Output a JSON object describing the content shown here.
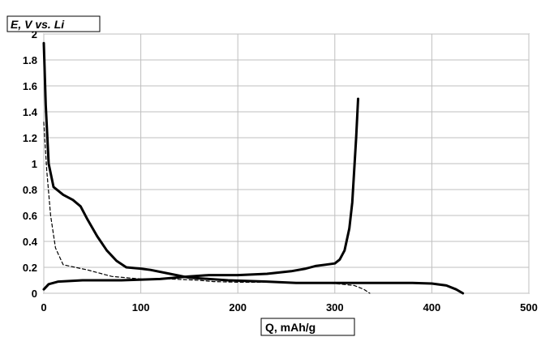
{
  "chart_data": {
    "type": "line",
    "title": "",
    "ylabel": "E, V vs. Li",
    "xlabel": "Q, mAh/g",
    "xlim": [
      0,
      500
    ],
    "ylim": [
      0,
      2
    ],
    "x_ticks": [
      "0",
      "100",
      "200",
      "300",
      "400",
      "500"
    ],
    "y_ticks": [
      "0",
      "0.2",
      "0.4",
      "0.6",
      "0.8",
      "1",
      "1.2",
      "1.4",
      "1.6",
      "1.8",
      "2"
    ],
    "grid": true,
    "series": [
      {
        "style": "solid",
        "points": [
          [
            0,
            1.93
          ],
          [
            2,
            1.45
          ],
          [
            5,
            1.0
          ],
          [
            10,
            0.82
          ],
          [
            20,
            0.76
          ],
          [
            30,
            0.72
          ],
          [
            38,
            0.67
          ],
          [
            45,
            0.57
          ],
          [
            55,
            0.44
          ],
          [
            65,
            0.33
          ],
          [
            75,
            0.25
          ],
          [
            85,
            0.2
          ],
          [
            100,
            0.19
          ],
          [
            110,
            0.18
          ],
          [
            130,
            0.15
          ],
          [
            150,
            0.12
          ],
          [
            170,
            0.11
          ],
          [
            190,
            0.1
          ],
          [
            230,
            0.09
          ],
          [
            260,
            0.08
          ],
          [
            300,
            0.08
          ],
          [
            340,
            0.08
          ],
          [
            380,
            0.08
          ],
          [
            400,
            0.075
          ],
          [
            415,
            0.06
          ],
          [
            425,
            0.03
          ],
          [
            432,
            0.0
          ]
        ]
      },
      {
        "style": "solid",
        "points": [
          [
            0,
            0.03
          ],
          [
            5,
            0.07
          ],
          [
            15,
            0.09
          ],
          [
            40,
            0.1
          ],
          [
            80,
            0.1
          ],
          [
            120,
            0.11
          ],
          [
            150,
            0.13
          ],
          [
            170,
            0.14
          ],
          [
            200,
            0.14
          ],
          [
            230,
            0.15
          ],
          [
            255,
            0.17
          ],
          [
            270,
            0.19
          ],
          [
            280,
            0.21
          ],
          [
            290,
            0.22
          ],
          [
            300,
            0.23
          ],
          [
            305,
            0.26
          ],
          [
            310,
            0.33
          ],
          [
            315,
            0.5
          ],
          [
            318,
            0.7
          ],
          [
            320,
            0.95
          ],
          [
            322,
            1.2
          ],
          [
            324,
            1.5
          ]
        ]
      },
      {
        "style": "dashed",
        "points": [
          [
            0,
            1.32
          ],
          [
            3,
            0.95
          ],
          [
            7,
            0.6
          ],
          [
            12,
            0.35
          ],
          [
            20,
            0.22
          ],
          [
            45,
            0.18
          ],
          [
            70,
            0.13
          ],
          [
            100,
            0.11
          ],
          [
            130,
            0.11
          ],
          [
            160,
            0.1
          ],
          [
            175,
            0.09
          ],
          [
            200,
            0.085
          ],
          [
            240,
            0.085
          ],
          [
            270,
            0.08
          ],
          [
            300,
            0.075
          ],
          [
            320,
            0.06
          ],
          [
            330,
            0.03
          ],
          [
            336,
            0.0
          ]
        ]
      }
    ]
  }
}
